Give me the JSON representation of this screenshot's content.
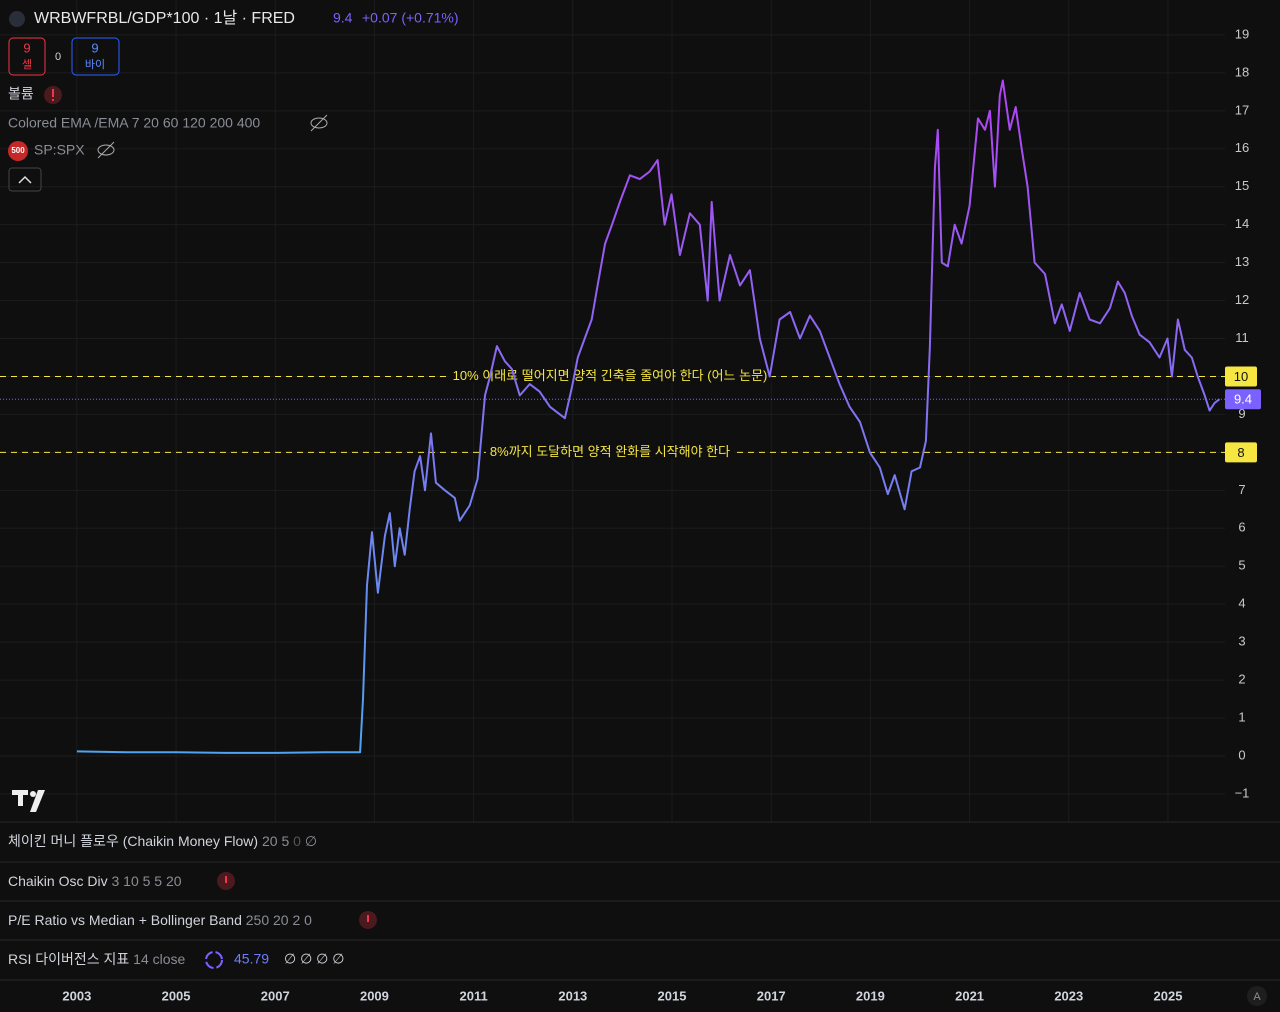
{
  "header": {
    "symbol": "WRBWFRBL/GDP*100 · 1날 · FRED",
    "change": "+0.07 (+0.71%)",
    "sell_count": "9",
    "sell_label": "셀",
    "spread": "0",
    "buy_count": "9",
    "buy_label": "바이"
  },
  "legend": {
    "volume": "볼륨",
    "ema": "Colored EMA /EMA 7 20 60 120 200 400",
    "spx_badge": "500",
    "spx": "SP:SPX"
  },
  "chart_data": {
    "type": "line",
    "xlim": [
      2001.45,
      2026.15
    ],
    "ylim": [
      -1.74,
      19.92
    ],
    "xticks": [
      2003,
      2005,
      2007,
      2009,
      2011,
      2013,
      2015,
      2017,
      2019,
      2021,
      2023,
      2025
    ],
    "yticks": [
      {
        "value": -1,
        "label": "−1"
      },
      0,
      1,
      2,
      3,
      4,
      5,
      6,
      7,
      8,
      9,
      10,
      11,
      12,
      13,
      14,
      15,
      16,
      17,
      18,
      19
    ],
    "grid": true,
    "last_value": 9.4,
    "last_color": "#7b61ff",
    "series": [
      {
        "color": "#4ea5f0",
        "color_high": "#b341f5",
        "x": [
          2003.0,
          2004.0,
          2005.0,
          2006.0,
          2007.0,
          2008.0,
          2008.5,
          2008.71,
          2008.77,
          2008.85,
          2008.95,
          2009.07,
          2009.21,
          2009.31,
          2009.41,
          2009.51,
          2009.61,
          2009.71,
          2009.81,
          2009.92,
          2010.02,
          2010.14,
          2010.24,
          2010.42,
          2010.62,
          2010.72,
          2010.92,
          2011.08,
          2011.23,
          2011.33,
          2011.47,
          2011.63,
          2011.77,
          2011.93,
          2012.13,
          2012.33,
          2012.54,
          2012.74,
          2012.84,
          2012.98,
          2013.1,
          2013.24,
          2013.38,
          2013.5,
          2013.65,
          2013.79,
          2013.95,
          2014.15,
          2014.35,
          2014.55,
          2014.71,
          2014.85,
          2014.99,
          2015.16,
          2015.36,
          2015.56,
          2015.72,
          2015.8,
          2015.96,
          2016.17,
          2016.37,
          2016.57,
          2016.77,
          2016.97,
          2017.17,
          2017.38,
          2017.58,
          2017.78,
          2017.98,
          2018.18,
          2018.38,
          2018.58,
          2018.79,
          2018.99,
          2019.19,
          2019.35,
          2019.49,
          2019.69,
          2019.83,
          2020.0,
          2020.12,
          2020.2,
          2020.3,
          2020.36,
          2020.44,
          2020.56,
          2020.7,
          2020.84,
          2021.0,
          2021.17,
          2021.31,
          2021.41,
          2021.51,
          2021.61,
          2021.67,
          2021.81,
          2021.93,
          2022.05,
          2022.17,
          2022.31,
          2022.52,
          2022.72,
          2022.86,
          2023.02,
          2023.22,
          2023.42,
          2023.63,
          2023.83,
          2023.99,
          2024.13,
          2024.27,
          2024.43,
          2024.63,
          2024.83,
          2024.99,
          2025.08,
          2025.2,
          2025.34,
          2025.48,
          2025.6,
          2025.74,
          2025.84,
          2025.94,
          2026.04
        ],
        "values": [
          0.12,
          0.1,
          0.1,
          0.08,
          0.08,
          0.1,
          0.1,
          0.1,
          1.5,
          4.5,
          5.9,
          4.3,
          5.8,
          6.4,
          5.0,
          6.0,
          5.3,
          6.5,
          7.5,
          7.9,
          7.0,
          8.5,
          7.2,
          7.0,
          6.8,
          6.2,
          6.6,
          7.3,
          9.5,
          10.0,
          10.8,
          10.4,
          10.2,
          9.5,
          9.8,
          9.6,
          9.2,
          9.0,
          8.9,
          9.7,
          10.5,
          11.0,
          11.5,
          12.4,
          13.5,
          14.0,
          14.6,
          15.3,
          15.2,
          15.4,
          15.7,
          14.0,
          14.8,
          13.2,
          14.3,
          14.0,
          12.0,
          14.6,
          12.0,
          13.2,
          12.4,
          12.8,
          11.0,
          10.0,
          11.5,
          11.7,
          11.0,
          11.6,
          11.2,
          10.5,
          9.8,
          9.2,
          8.8,
          8.0,
          7.6,
          6.9,
          7.4,
          6.5,
          7.5,
          7.6,
          8.3,
          10.8,
          15.5,
          16.5,
          13.0,
          12.9,
          14.0,
          13.5,
          14.5,
          16.8,
          16.5,
          17.0,
          15.0,
          17.4,
          17.8,
          16.5,
          17.1,
          16.0,
          15.0,
          13.0,
          12.7,
          11.4,
          11.9,
          11.2,
          12.2,
          11.5,
          11.4,
          11.8,
          12.5,
          12.2,
          11.6,
          11.1,
          10.9,
          10.5,
          11.0,
          10.0,
          11.5,
          10.7,
          10.5,
          10.0,
          9.5,
          9.1,
          9.3,
          9.4
        ]
      }
    ],
    "hlines": [
      {
        "value": 10,
        "label": "10% 이래로 떨어지면 양적 긴축을 줄여야 한다 (어느 논문)",
        "color": "#f5e642"
      },
      {
        "value": 8,
        "label": "8%까지 도달하면 양적 완화를 시작해야 한다",
        "color": "#f5e642"
      }
    ]
  },
  "panes": [
    {
      "name": "체이킨 머니 플로우 (Chaikin Money Flow)",
      "params": "20 5",
      "value": "0",
      "extra": "∅"
    },
    {
      "name": "Chaikin Osc Div",
      "params": "3 10 5 5 20"
    },
    {
      "name": "P/E Ratio vs Median + Bollinger Band",
      "params": "250 20 2 0"
    },
    {
      "name": "RSI 다이버전스 지표",
      "params": "14 close",
      "value": "45.79",
      "extra": "∅ ∅ ∅ ∅"
    }
  ],
  "footer": {
    "auto": "A"
  }
}
